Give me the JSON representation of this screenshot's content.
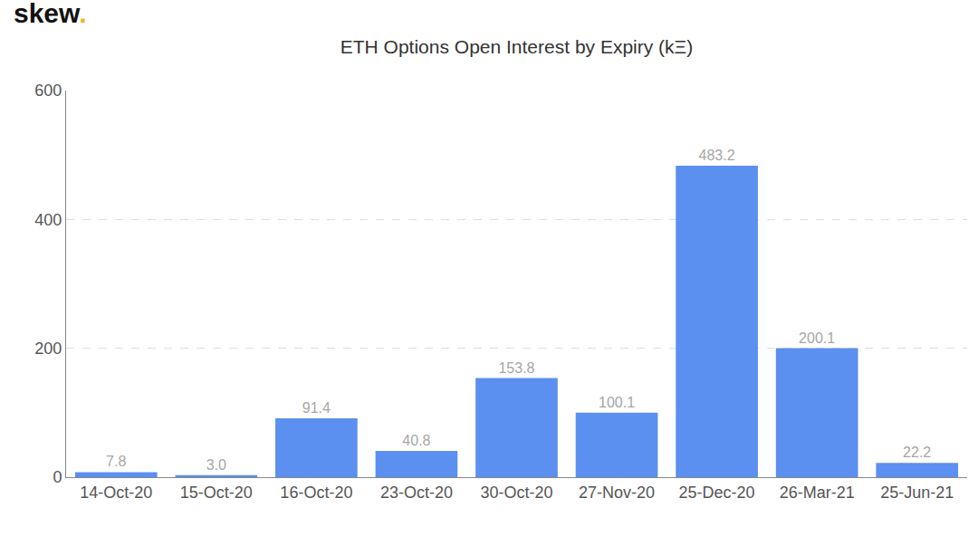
{
  "chart_data": {
    "type": "bar",
    "title": "ETH Options Open Interest by Expiry (kΞ)",
    "annotations": [
      "skew."
    ],
    "categories": [
      "14-Oct-20",
      "15-Oct-20",
      "16-Oct-20",
      "23-Oct-20",
      "30-Oct-20",
      "27-Nov-20",
      "25-Dec-20",
      "26-Mar-21",
      "25-Jun-21"
    ],
    "values": [
      7.8,
      3.0,
      91.4,
      40.8,
      153.8,
      100.1,
      483.2,
      200.1,
      22.2
    ],
    "value_labels": [
      "7.8",
      "3.0",
      "91.4",
      "40.8",
      "153.8",
      "100.1",
      "483.2",
      "200.1",
      "22.2"
    ],
    "color": "#5b8ff0",
    "ylim": [
      0,
      600
    ],
    "yticks": [
      0,
      200,
      400,
      600
    ],
    "grid": true,
    "data_labels": true
  }
}
